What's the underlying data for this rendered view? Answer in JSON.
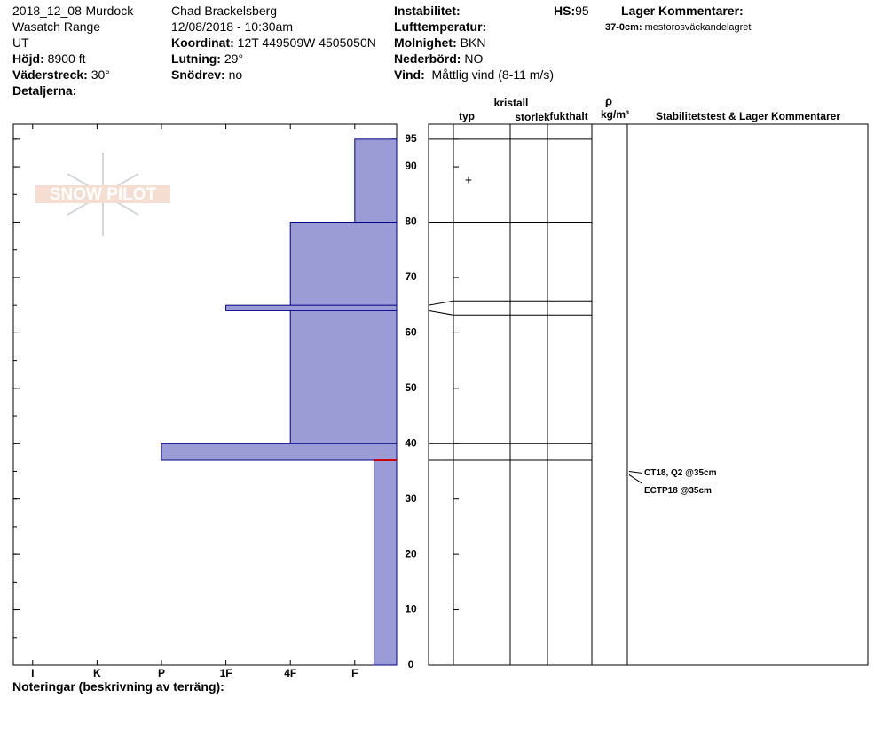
{
  "header": {
    "site": "2018_12_08-Murdock",
    "range": "Wasatch Range",
    "state": "UT",
    "elevation": {
      "label": "Höjd:",
      "value": "8900 ft"
    },
    "aspect": {
      "label": "Väderstreck:",
      "value": "30°"
    },
    "details": {
      "label": "Detaljerna:"
    },
    "observer": "Chad Brackelsberg",
    "date": "12/08/2018 - 10:30am",
    "coordinate": {
      "label": "Koordinat:",
      "value": "12T 449509W 4505050N"
    },
    "slope": {
      "label": "Lutning:",
      "value": "29°"
    },
    "wind_loading": {
      "label": "Snödrev:",
      "value": "no"
    },
    "instability": {
      "label": "Instabilitet:"
    },
    "hs": {
      "label": "HS:",
      "value": "95"
    },
    "air_temp": {
      "label": "Lufttemperatur:"
    },
    "sky": {
      "label": "Molnighet:",
      "value": "BKN"
    },
    "precip": {
      "label": "Nederbörd:",
      "value": "NO"
    },
    "wind": {
      "label": "Vind:",
      "value": "Måttlig vind (8-11 m/s)"
    },
    "layer_comments": {
      "title": "Lager Kommentarer:",
      "label": "37-0cm:",
      "value": "mestorosväckandelagret"
    }
  },
  "logo": "SNOW PILOT",
  "footer": "Noteringar (beskrivning av terräng):",
  "columns": [
    "typ",
    "kristall",
    "storlek",
    "fukthalt",
    "ρ",
    "kg/m³",
    "Stabilitetstest & Lager Kommentarer"
  ],
  "chart_data": {
    "type": "bar",
    "ylim": [
      0,
      97.7
    ],
    "yticks": [
      0,
      10,
      20,
      30,
      40,
      50,
      60,
      70,
      80,
      90,
      95
    ],
    "yminor": 5,
    "xlim": [
      6.3,
      0.35
    ],
    "xticks": [
      {
        "value": 6,
        "label": "I"
      },
      {
        "value": 5,
        "label": "K"
      },
      {
        "value": 4,
        "label": "P"
      },
      {
        "value": 3,
        "label": "1F"
      },
      {
        "value": 2,
        "label": "4F"
      },
      {
        "value": 1,
        "label": "F"
      }
    ],
    "color": "#9b9bd6",
    "edge_color": "#00008b",
    "layers": [
      {
        "top": 95,
        "bottom": 80,
        "hardness": 1
      },
      {
        "top": 80,
        "bottom": 40,
        "hardness": 2
      },
      {
        "top": 65,
        "bottom": 64,
        "hardness": 3
      },
      {
        "top": 40,
        "bottom": 37,
        "hardness": 4
      },
      {
        "top": 37,
        "bottom": 0,
        "hardness": 0.7
      }
    ],
    "weak_layer": {
      "height": 37,
      "color": "#cc0000"
    },
    "grains": [
      {
        "height": 87.5,
        "symbol": "+"
      }
    ],
    "tests": [
      {
        "height": 35,
        "label": "CT18, Q2 @35cm"
      },
      {
        "height": 35,
        "label": "ECTP18 @35cm"
      }
    ]
  }
}
